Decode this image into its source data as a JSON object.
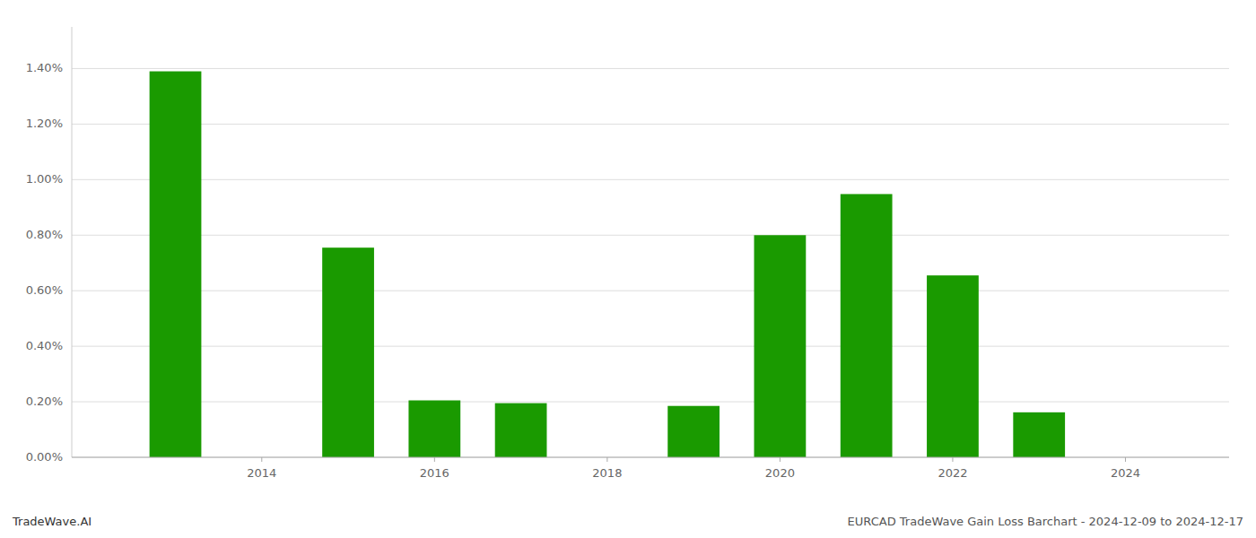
{
  "chart_data": {
    "type": "bar",
    "x": [
      2013,
      2015,
      2016,
      2017,
      2019,
      2020,
      2021,
      2022,
      2023
    ],
    "values": [
      1.39,
      0.755,
      0.205,
      0.195,
      0.185,
      0.8,
      0.948,
      0.655,
      0.162
    ],
    "color": "#1a9a00",
    "xlim": [
      2011.8,
      2025.2
    ],
    "xticks": [
      2014,
      2016,
      2018,
      2020,
      2022,
      2024
    ],
    "ylim": [
      0,
      1.55
    ],
    "yticks": [
      {
        "value": 0,
        "label": "0.00%"
      },
      {
        "value": 0.2,
        "label": "0.20%"
      },
      {
        "value": 0.4,
        "label": "0.40%"
      },
      {
        "value": 0.6,
        "label": "0.60%"
      },
      {
        "value": 0.8,
        "label": "0.80%"
      },
      {
        "value": 1.0,
        "label": "1.00%"
      },
      {
        "value": 1.2,
        "label": "1.20%"
      },
      {
        "value": 1.4,
        "label": "1.40%"
      }
    ],
    "grid": true,
    "annotations": [
      "TradeWave.AI",
      "EURCAD TradeWave Gain Loss Barchart - 2024-12-09 to 2024-12-17"
    ]
  }
}
